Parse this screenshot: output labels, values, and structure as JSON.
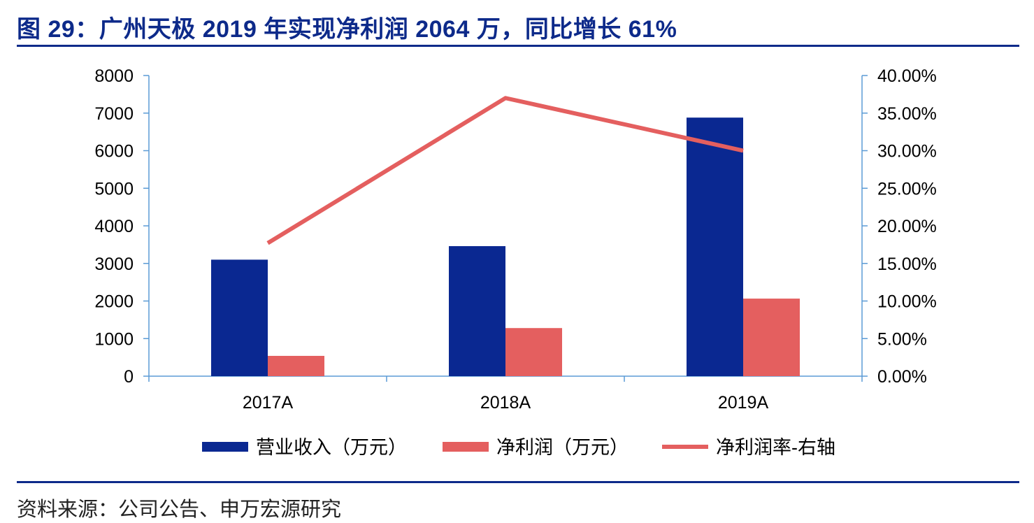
{
  "title": "图 29：广州天极 2019 年实现净利润 2064 万，同比增长 61%",
  "source": "资料来源：公司公告、申万宏源研究",
  "chart_data": {
    "type": "bar",
    "categories": [
      "2017A",
      "2018A",
      "2019A"
    ],
    "series": [
      {
        "name": "营业收入（万元）",
        "type": "bar",
        "axis": "left",
        "color": "#0a2891",
        "values": [
          3100,
          3460,
          6880
        ]
      },
      {
        "name": "净利润（万元）",
        "type": "bar",
        "axis": "left",
        "color": "#e45f5f",
        "values": [
          540,
          1280,
          2064
        ]
      },
      {
        "name": "净利润率-右轴",
        "type": "line",
        "axis": "right",
        "color": "#e45f5f",
        "values": [
          0.177,
          0.37,
          0.3
        ]
      }
    ],
    "ylim": [
      0,
      8000
    ],
    "y_ticks": [
      "0",
      "1000",
      "2000",
      "3000",
      "4000",
      "5000",
      "6000",
      "7000",
      "8000"
    ],
    "y2lim": [
      0,
      0.4
    ],
    "y2_ticks": [
      "0.00%",
      "5.00%",
      "10.00%",
      "15.00%",
      "20.00%",
      "25.00%",
      "30.00%",
      "35.00%",
      "40.00%"
    ],
    "legend": "bottom",
    "grid": false
  }
}
